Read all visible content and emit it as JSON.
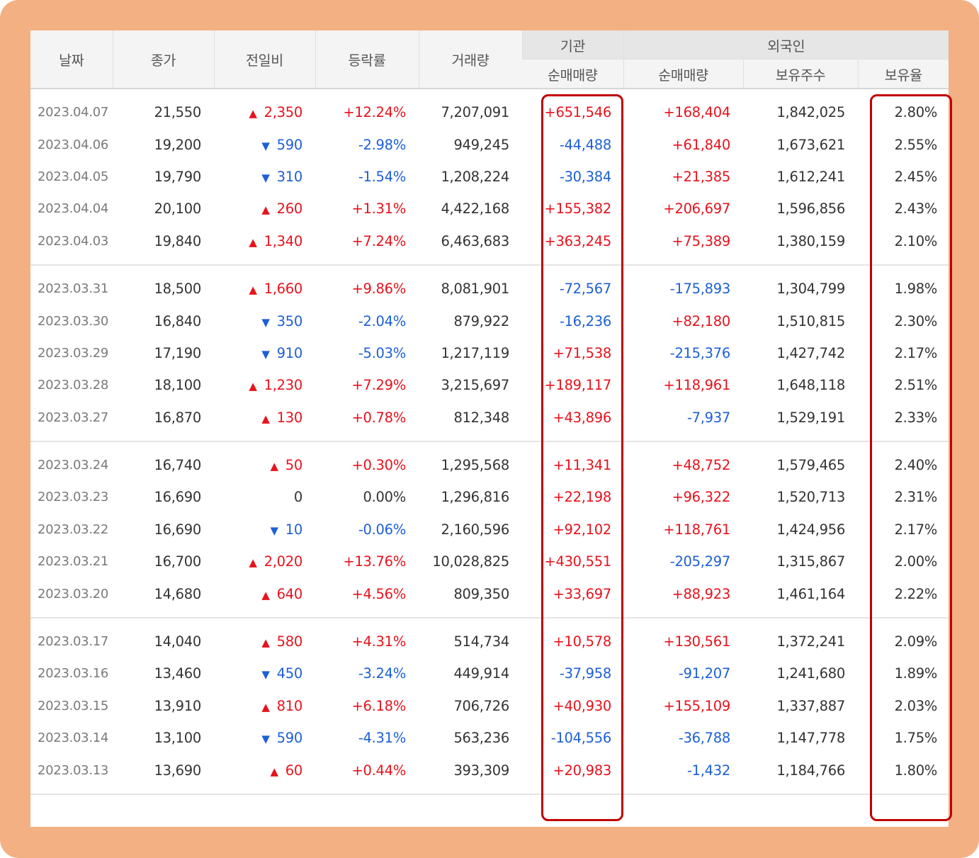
{
  "headers": {
    "date": "날짜",
    "close": "종가",
    "change": "전일비",
    "rate": "등락률",
    "volume": "거래량",
    "institution_group": "기관",
    "foreign_group": "외국인",
    "inst_net": "순매매량",
    "foreign_net": "순매매량",
    "foreign_holdings": "보유주수",
    "foreign_ratio": "보유율"
  },
  "colors": {
    "frame": "#f3b183",
    "up": "#e8121c",
    "down": "#1d5fd6",
    "highlight": "#c00000"
  },
  "rows": [
    {
      "date": "2023.04.07",
      "close": "21,550",
      "dir": "up",
      "change": "2,350",
      "rate": "+12.24%",
      "volume": "7,207,091",
      "inst": "+651,546",
      "fnet": "+168,404",
      "fhold": "1,842,025",
      "fratio": "2.80%"
    },
    {
      "date": "2023.04.06",
      "close": "19,200",
      "dir": "down",
      "change": "590",
      "rate": "-2.98%",
      "volume": "949,245",
      "inst": "-44,488",
      "fnet": "+61,840",
      "fhold": "1,673,621",
      "fratio": "2.55%"
    },
    {
      "date": "2023.04.05",
      "close": "19,790",
      "dir": "down",
      "change": "310",
      "rate": "-1.54%",
      "volume": "1,208,224",
      "inst": "-30,384",
      "fnet": "+21,385",
      "fhold": "1,612,241",
      "fratio": "2.45%"
    },
    {
      "date": "2023.04.04",
      "close": "20,100",
      "dir": "up",
      "change": "260",
      "rate": "+1.31%",
      "volume": "4,422,168",
      "inst": "+155,382",
      "fnet": "+206,697",
      "fhold": "1,596,856",
      "fratio": "2.43%"
    },
    {
      "date": "2023.04.03",
      "close": "19,840",
      "dir": "up",
      "change": "1,340",
      "rate": "+7.24%",
      "volume": "6,463,683",
      "inst": "+363,245",
      "fnet": "+75,389",
      "fhold": "1,380,159",
      "fratio": "2.10%"
    },
    {
      "date": "2023.03.31",
      "close": "18,500",
      "dir": "up",
      "change": "1,660",
      "rate": "+9.86%",
      "volume": "8,081,901",
      "inst": "-72,567",
      "fnet": "-175,893",
      "fhold": "1,304,799",
      "fratio": "1.98%"
    },
    {
      "date": "2023.03.30",
      "close": "16,840",
      "dir": "down",
      "change": "350",
      "rate": "-2.04%",
      "volume": "879,922",
      "inst": "-16,236",
      "fnet": "+82,180",
      "fhold": "1,510,815",
      "fratio": "2.30%"
    },
    {
      "date": "2023.03.29",
      "close": "17,190",
      "dir": "down",
      "change": "910",
      "rate": "-5.03%",
      "volume": "1,217,119",
      "inst": "+71,538",
      "fnet": "-215,376",
      "fhold": "1,427,742",
      "fratio": "2.17%"
    },
    {
      "date": "2023.03.28",
      "close": "18,100",
      "dir": "up",
      "change": "1,230",
      "rate": "+7.29%",
      "volume": "3,215,697",
      "inst": "+189,117",
      "fnet": "+118,961",
      "fhold": "1,648,118",
      "fratio": "2.51%"
    },
    {
      "date": "2023.03.27",
      "close": "16,870",
      "dir": "up",
      "change": "130",
      "rate": "+0.78%",
      "volume": "812,348",
      "inst": "+43,896",
      "fnet": "-7,937",
      "fhold": "1,529,191",
      "fratio": "2.33%"
    },
    {
      "date": "2023.03.24",
      "close": "16,740",
      "dir": "up",
      "change": "50",
      "rate": "+0.30%",
      "volume": "1,295,568",
      "inst": "+11,341",
      "fnet": "+48,752",
      "fhold": "1,579,465",
      "fratio": "2.40%"
    },
    {
      "date": "2023.03.23",
      "close": "16,690",
      "dir": "none",
      "change": "0",
      "rate": "0.00%",
      "volume": "1,296,816",
      "inst": "+22,198",
      "fnet": "+96,322",
      "fhold": "1,520,713",
      "fratio": "2.31%"
    },
    {
      "date": "2023.03.22",
      "close": "16,690",
      "dir": "down",
      "change": "10",
      "rate": "-0.06%",
      "volume": "2,160,596",
      "inst": "+92,102",
      "fnet": "+118,761",
      "fhold": "1,424,956",
      "fratio": "2.17%"
    },
    {
      "date": "2023.03.21",
      "close": "16,700",
      "dir": "up",
      "change": "2,020",
      "rate": "+13.76%",
      "volume": "10,028,825",
      "inst": "+430,551",
      "fnet": "-205,297",
      "fhold": "1,315,867",
      "fratio": "2.00%"
    },
    {
      "date": "2023.03.20",
      "close": "14,680",
      "dir": "up",
      "change": "640",
      "rate": "+4.56%",
      "volume": "809,350",
      "inst": "+33,697",
      "fnet": "+88,923",
      "fhold": "1,461,164",
      "fratio": "2.22%"
    },
    {
      "date": "2023.03.17",
      "close": "14,040",
      "dir": "up",
      "change": "580",
      "rate": "+4.31%",
      "volume": "514,734",
      "inst": "+10,578",
      "fnet": "+130,561",
      "fhold": "1,372,241",
      "fratio": "2.09%"
    },
    {
      "date": "2023.03.16",
      "close": "13,460",
      "dir": "down",
      "change": "450",
      "rate": "-3.24%",
      "volume": "449,914",
      "inst": "-37,958",
      "fnet": "-91,207",
      "fhold": "1,241,680",
      "fratio": "1.89%"
    },
    {
      "date": "2023.03.15",
      "close": "13,910",
      "dir": "up",
      "change": "810",
      "rate": "+6.18%",
      "volume": "706,726",
      "inst": "+40,930",
      "fnet": "+155,109",
      "fhold": "1,337,887",
      "fratio": "2.03%"
    },
    {
      "date": "2023.03.14",
      "close": "13,100",
      "dir": "down",
      "change": "590",
      "rate": "-4.31%",
      "volume": "563,236",
      "inst": "-104,556",
      "fnet": "-36,788",
      "fhold": "1,147,778",
      "fratio": "1.75%"
    },
    {
      "date": "2023.03.13",
      "close": "13,690",
      "dir": "up",
      "change": "60",
      "rate": "+0.44%",
      "volume": "393,309",
      "inst": "+20,983",
      "fnet": "-1,432",
      "fhold": "1,184,766",
      "fratio": "1.80%"
    }
  ]
}
